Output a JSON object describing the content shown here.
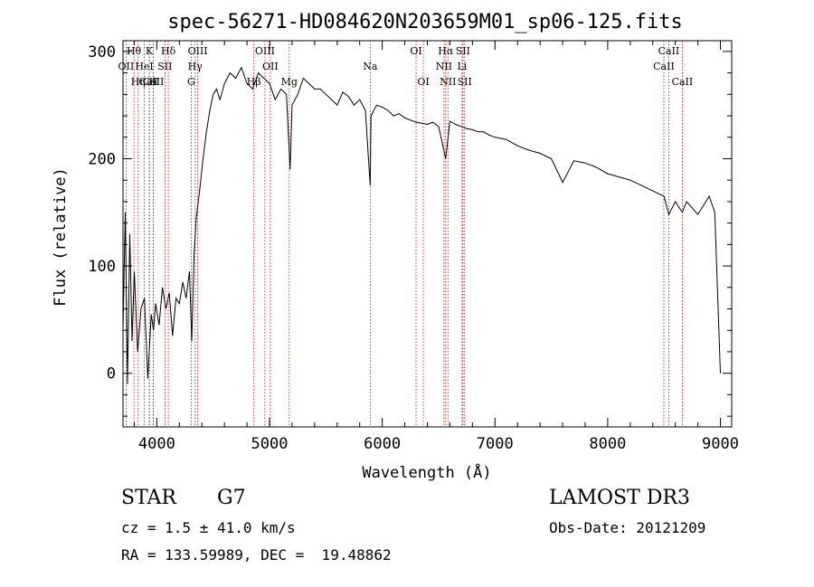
{
  "chart_data": {
    "type": "line",
    "title": "spec-56271-HD084620N203659M01_sp06-125.fits",
    "xlabel": "Wavelength (Å)",
    "ylabel": "Flux (relative)",
    "xlim": [
      3700,
      9100
    ],
    "ylim": [
      -50,
      310
    ],
    "xticks": [
      4000,
      5000,
      6000,
      7000,
      8000,
      9000
    ],
    "yticks": [
      0,
      100,
      200,
      300
    ],
    "grid": false,
    "line_color": "#000000",
    "marker_color": "#cc0000",
    "series": [
      {
        "x": [
          3700,
          3720,
          3740,
          3760,
          3780,
          3800,
          3830,
          3860,
          3890,
          3920,
          3950,
          3970,
          3990,
          4020,
          4050,
          4080,
          4110,
          4140,
          4170,
          4200,
          4230,
          4260,
          4290,
          4310,
          4330,
          4350,
          4380,
          4410,
          4440,
          4470,
          4500,
          4530,
          4560,
          4600,
          4650,
          4700,
          4750,
          4800,
          4850,
          4900,
          4950,
          5000,
          5050,
          5100,
          5150,
          5183,
          5200,
          5250,
          5300,
          5350,
          5400,
          5450,
          5500,
          5550,
          5600,
          5650,
          5700,
          5750,
          5800,
          5850,
          5893,
          5900,
          5950,
          6000,
          6050,
          6100,
          6150,
          6200,
          6250,
          6300,
          6350,
          6400,
          6450,
          6500,
          6563,
          6600,
          6650,
          6700,
          6750,
          6800,
          6850,
          6900,
          6950,
          7000,
          7100,
          7200,
          7300,
          7400,
          7500,
          7600,
          7700,
          7800,
          7900,
          8000,
          8100,
          8200,
          8300,
          8400,
          8500,
          8542,
          8600,
          8662,
          8700,
          8800,
          8900,
          8950,
          9000
        ],
        "values": [
          40,
          150,
          -10,
          130,
          30,
          95,
          20,
          60,
          70,
          -5,
          55,
          40,
          65,
          45,
          80,
          60,
          75,
          35,
          70,
          65,
          85,
          70,
          95,
          30,
          110,
          145,
          170,
          200,
          225,
          245,
          260,
          265,
          255,
          270,
          280,
          275,
          285,
          270,
          265,
          280,
          275,
          270,
          255,
          265,
          260,
          190,
          250,
          260,
          275,
          270,
          265,
          265,
          260,
          255,
          250,
          262,
          258,
          250,
          255,
          245,
          175,
          240,
          250,
          248,
          245,
          240,
          242,
          238,
          236,
          234,
          233,
          232,
          234,
          230,
          200,
          235,
          232,
          230,
          228,
          227,
          225,
          225,
          222,
          220,
          218,
          212,
          208,
          205,
          200,
          178,
          198,
          196,
          192,
          186,
          183,
          180,
          175,
          170,
          165,
          148,
          160,
          150,
          160,
          148,
          165,
          150,
          0
        ]
      }
    ],
    "lines": [
      {
        "name": "Hθ",
        "x": 3797,
        "row": 1
      },
      {
        "name": "OII",
        "x": 3727,
        "row": 2
      },
      {
        "name": "CaII",
        "x": 3934,
        "row": 3
      },
      {
        "name": "CaII",
        "x": 3969,
        "row": 3
      },
      {
        "name": "Hη",
        "x": 3835,
        "row": 3
      },
      {
        "name": "K",
        "x": 3934,
        "row": 1
      },
      {
        "name": "H",
        "x": 3969,
        "row": 3
      },
      {
        "name": "HeI",
        "x": 3889,
        "row": 2
      },
      {
        "name": "SII",
        "x": 4072,
        "row": 2
      },
      {
        "name": "Hδ",
        "x": 4102,
        "row": 1
      },
      {
        "name": "OIII",
        "x": 4363,
        "row": 1
      },
      {
        "name": "Hγ",
        "x": 4340,
        "row": 2
      },
      {
        "name": "G",
        "x": 4305,
        "row": 3
      },
      {
        "name": "OIII",
        "x": 4959,
        "row": 1
      },
      {
        "name": "OII",
        "x": 5007,
        "row": 2
      },
      {
        "name": "Hβ",
        "x": 4861,
        "row": 3
      },
      {
        "name": "Mg",
        "x": 5175,
        "row": 3
      },
      {
        "name": "Na",
        "x": 5893,
        "row": 2
      },
      {
        "name": "OI",
        "x": 6300,
        "row": 1
      },
      {
        "name": "OI",
        "x": 6364,
        "row": 3
      },
      {
        "name": "Hα",
        "x": 6563,
        "row": 1
      },
      {
        "name": "NII",
        "x": 6548,
        "row": 2
      },
      {
        "name": "NII",
        "x": 6583,
        "row": 3
      },
      {
        "name": "SII",
        "x": 6716,
        "row": 1
      },
      {
        "name": "Li",
        "x": 6708,
        "row": 2
      },
      {
        "name": "SII",
        "x": 6731,
        "row": 3
      },
      {
        "name": "CaII",
        "x": 8542,
        "row": 1
      },
      {
        "name": "CaII",
        "x": 8498,
        "row": 2
      },
      {
        "name": "CaII",
        "x": 8662,
        "row": 3
      }
    ]
  },
  "info": {
    "class": "STAR",
    "subclass": "G7",
    "cz": "cz = 1.5 ± 41.0 km/s",
    "radec": "RA = 133.59989, DEC =  19.48862",
    "survey": "LAMOST DR3",
    "obsdate": "Obs-Date: 20121209"
  }
}
